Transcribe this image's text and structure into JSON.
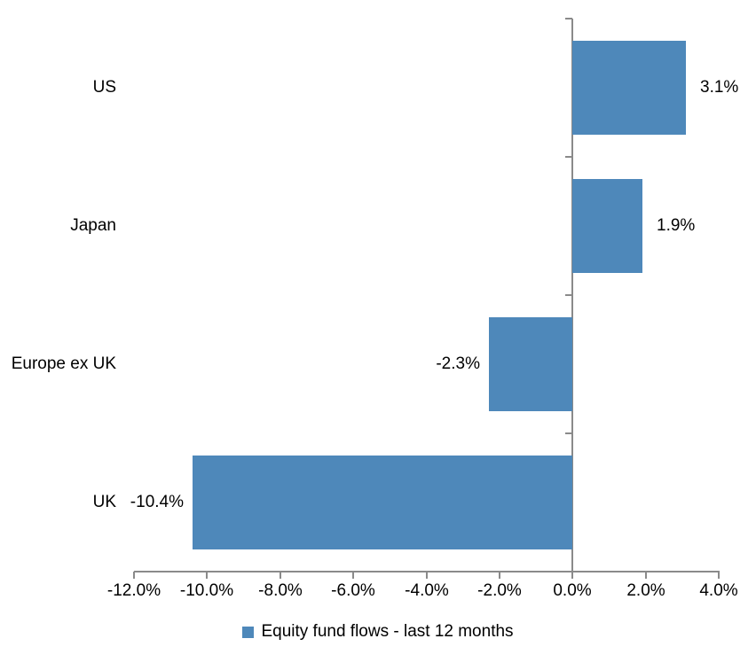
{
  "chart_data": {
    "type": "bar",
    "orientation": "horizontal",
    "title": "",
    "categories": [
      "US",
      "Japan",
      "Europe ex UK",
      "UK"
    ],
    "series": [
      {
        "name": "Equity fund flows - last 12 months",
        "values": [
          3.1,
          1.9,
          -2.3,
          -10.4
        ],
        "data_labels": [
          "3.1%",
          "1.9%",
          "-2.3%",
          "-10.4%"
        ]
      }
    ],
    "xlabel": "",
    "ylabel": "",
    "xlim": [
      -12,
      4
    ],
    "x_ticks": [
      -12,
      -10,
      -8,
      -6,
      -4,
      -2,
      0,
      2,
      4
    ],
    "x_tick_labels": [
      "-12.0%",
      "-10.0%",
      "-8.0%",
      "-6.0%",
      "-4.0%",
      "-2.0%",
      "0.0%",
      "2.0%",
      "4.0%"
    ],
    "grid": false,
    "legend_position": "bottom",
    "legend_label": "Equity fund flows - last 12 months",
    "bar_color": "#4e88ba",
    "axis_color": "#8a8a8a",
    "text_color": "#000000",
    "background_color": "#ffffff"
  }
}
